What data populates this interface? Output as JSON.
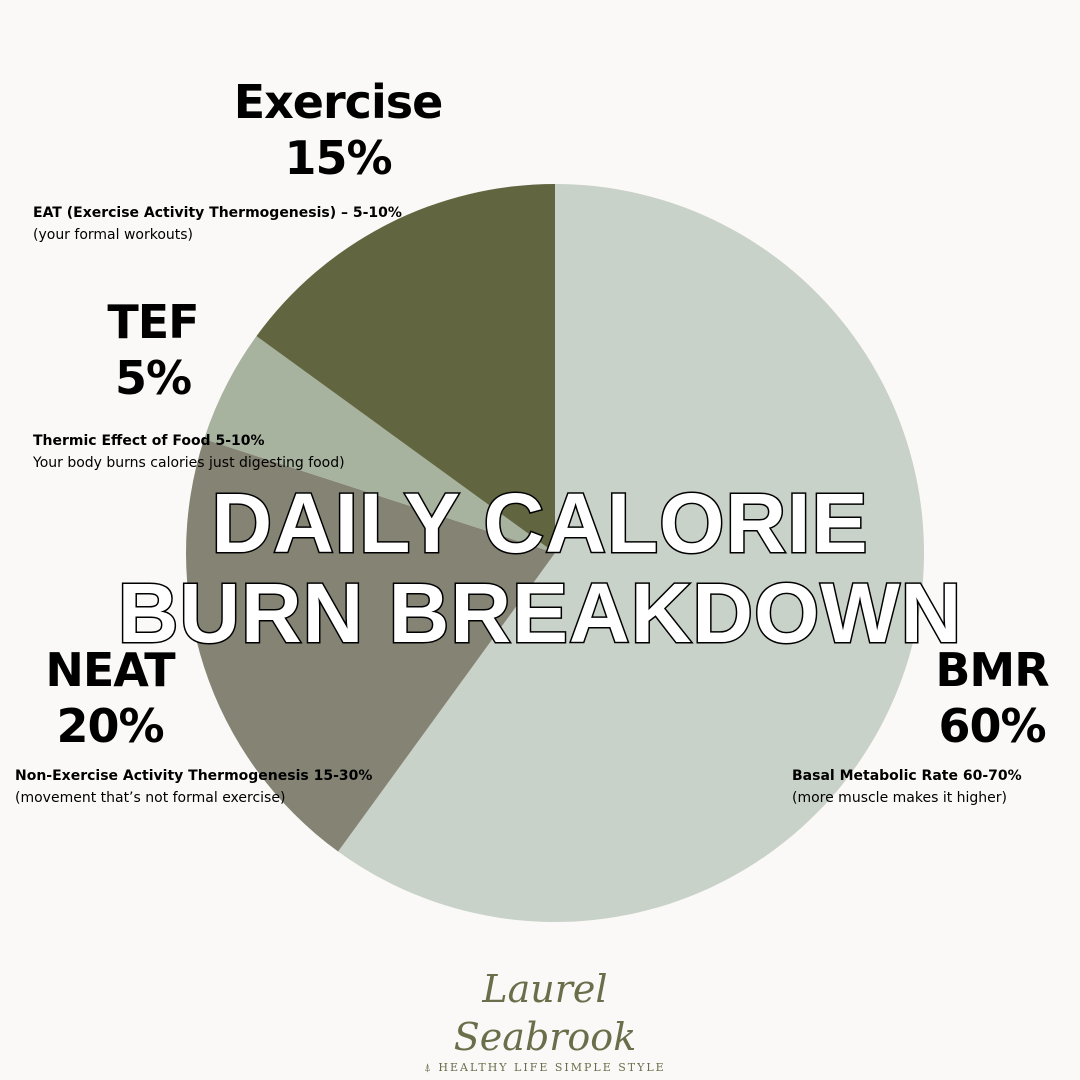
{
  "chart_data": {
    "type": "pie",
    "title": "DAILY CALORIE BURN BREAKDOWN",
    "title_lines": [
      "DAILY CALORIE",
      "BURN BREAKDOWN"
    ],
    "start": "top",
    "direction": "clockwise",
    "slices": [
      {
        "label": "BMR",
        "value": 60,
        "value_label": "60%",
        "color": "#c9d2c8",
        "desc_title": "Basal Metabolic Rate 60-70%",
        "desc_text": "(more muscle makes it higher)"
      },
      {
        "label": "NEAT",
        "value": 20,
        "value_label": "20%",
        "color": "#858374",
        "desc_title": "Non-Exercise Activity Thermogenesis 15-30%",
        "desc_text": "(movement that’s not formal exercise)"
      },
      {
        "label": "TEF",
        "value": 5,
        "value_label": "5%",
        "color": "#a7b29f",
        "desc_title": "Thermic Effect of Food 5-10%",
        "desc_text": "Your body burns calories just digesting food)"
      },
      {
        "label": "Exercise",
        "value": 15,
        "value_label": "15%",
        "color": "#616640",
        "desc_title": "EAT (Exercise Activity Thermogenesis) – 5-10%",
        "desc_text": "(your formal workouts)"
      }
    ]
  },
  "branding": {
    "name": "Laurel Seabrook",
    "tagline": "HEALTHY LIFE SIMPLE STYLE",
    "color": "#6b6e4a"
  },
  "background": "#faf9f7"
}
